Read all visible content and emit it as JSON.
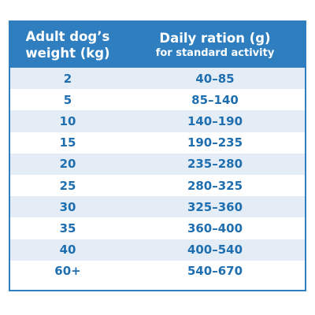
{
  "header": {
    "weight_line1": "Adult dog’s",
    "weight_line2": "weight (kg)",
    "ration_line1": "Daily ration (g)",
    "ration_line2": "for standard activity"
  },
  "rows": [
    {
      "weight": "2",
      "ration": "40–85"
    },
    {
      "weight": "5",
      "ration": "85–140"
    },
    {
      "weight": "10",
      "ration": "140–190"
    },
    {
      "weight": "15",
      "ration": "190–235"
    },
    {
      "weight": "20",
      "ration": "235–280"
    },
    {
      "weight": "25",
      "ration": "280–325"
    },
    {
      "weight": "30",
      "ration": "325–360"
    },
    {
      "weight": "35",
      "ration": "360–400"
    },
    {
      "weight": "40",
      "ration": "400–540"
    },
    {
      "weight": "60+",
      "ration": "540–670"
    }
  ],
  "colors": {
    "header_bg": "#2f7fc0",
    "row_alt_bg": "#e4edf5",
    "text_blue": "#1f6fb0"
  }
}
